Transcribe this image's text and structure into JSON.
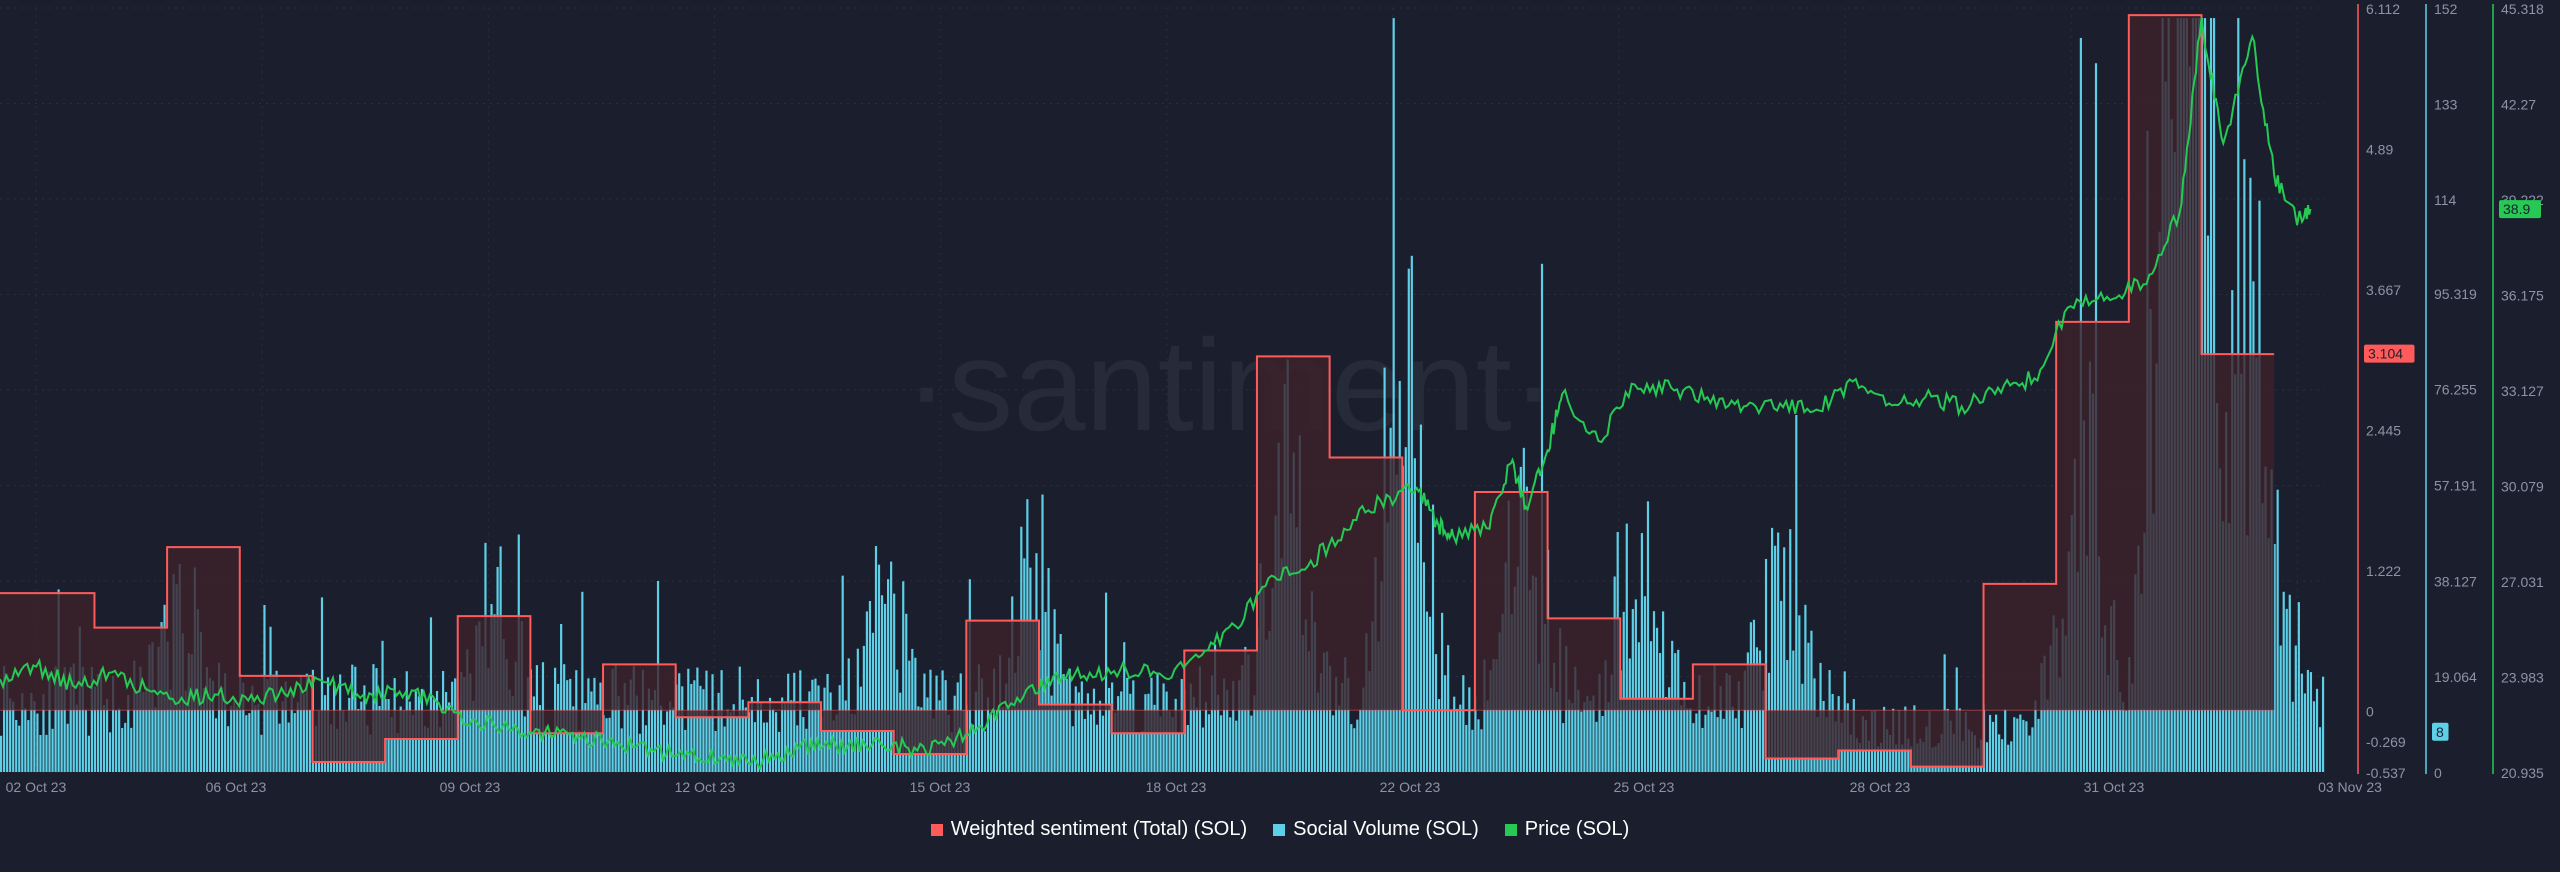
{
  "colors": {
    "background": "#1b1f2d",
    "sentiment": "#ff5b5b",
    "sentiment_fill": "#3d2129",
    "volume": "#5dd0e8",
    "price": "#26c953",
    "grid": "#2a2f3d",
    "axis_text": "#8b93a7"
  },
  "watermark": "·santiment·",
  "chart_data": {
    "type": "bar",
    "x_ticks": [
      "02 Oct 23",
      "06 Oct 23",
      "09 Oct 23",
      "12 Oct 23",
      "15 Oct 23",
      "18 Oct 23",
      "22 Oct 23",
      "25 Oct 23",
      "28 Oct 23",
      "31 Oct 23",
      "03 Nov 23"
    ],
    "x_range_days": [
      0,
      32
    ],
    "series": [
      {
        "name": "Weighted sentiment (Total) (SOL)",
        "type": "step-area",
        "axis": "sentiment",
        "steps": [
          [
            0,
            1.02
          ],
          [
            1.3,
            0.72
          ],
          [
            2.3,
            1.42
          ],
          [
            3.3,
            0.3
          ],
          [
            4.3,
            -0.45
          ],
          [
            5.3,
            -0.25
          ],
          [
            6.3,
            0.82
          ],
          [
            7.3,
            -0.2
          ],
          [
            8.3,
            0.4
          ],
          [
            9.3,
            -0.06
          ],
          [
            10.3,
            0.07
          ],
          [
            11.3,
            -0.18
          ],
          [
            12.3,
            -0.38
          ],
          [
            13.3,
            0.78
          ],
          [
            14.3,
            0.05
          ],
          [
            15.3,
            -0.2
          ],
          [
            16.3,
            0.52
          ],
          [
            17.3,
            3.08
          ],
          [
            18.3,
            2.2
          ],
          [
            19.3,
            0.0
          ],
          [
            20.3,
            1.9
          ],
          [
            21.3,
            0.8
          ],
          [
            22.3,
            0.1
          ],
          [
            23.3,
            0.4
          ],
          [
            24.3,
            -0.42
          ],
          [
            25.3,
            -0.35
          ],
          [
            26.3,
            -0.49
          ],
          [
            27.3,
            1.1
          ],
          [
            28.3,
            3.38
          ],
          [
            29.3,
            6.05
          ],
          [
            30.3,
            3.1
          ],
          [
            31.3,
            3.1
          ]
        ]
      },
      {
        "name": "Social Volume (SOL)",
        "type": "bar",
        "axis": "volume"
      },
      {
        "name": "Price (SOL)",
        "type": "line",
        "axis": "price",
        "points": [
          [
            0,
            23.9
          ],
          [
            0.5,
            24.3
          ],
          [
            1,
            23.7
          ],
          [
            1.5,
            24.1
          ],
          [
            2,
            23.6
          ],
          [
            2.5,
            23.3
          ],
          [
            3,
            23.4
          ],
          [
            3.5,
            23.2
          ],
          [
            4,
            23.6
          ],
          [
            4.5,
            23.8
          ],
          [
            5,
            23.4
          ],
          [
            5.5,
            23.5
          ],
          [
            6,
            23.2
          ],
          [
            6.5,
            22.6
          ],
          [
            7,
            22.3
          ],
          [
            7.5,
            22.2
          ],
          [
            8,
            22.0
          ],
          [
            8.5,
            21.9
          ],
          [
            9,
            21.6
          ],
          [
            9.5,
            21.5
          ],
          [
            10,
            21.3
          ],
          [
            10.5,
            21.3
          ],
          [
            11,
            21.7
          ],
          [
            11.5,
            21.8
          ],
          [
            12,
            21.8
          ],
          [
            12.5,
            21.7
          ],
          [
            13,
            21.8
          ],
          [
            13.5,
            22.4
          ],
          [
            14,
            23.3
          ],
          [
            14.5,
            24.0
          ],
          [
            15,
            24.1
          ],
          [
            15.5,
            24.2
          ],
          [
            16,
            24.0
          ],
          [
            16.5,
            24.6
          ],
          [
            17,
            25.6
          ],
          [
            17.5,
            27.2
          ],
          [
            18,
            27.5
          ],
          [
            18.5,
            28.7
          ],
          [
            19,
            29.6
          ],
          [
            19.5,
            30.0
          ],
          [
            19.8,
            28.8
          ],
          [
            20,
            28.5
          ],
          [
            20.5,
            28.7
          ],
          [
            20.8,
            30.8
          ],
          [
            21,
            29.4
          ],
          [
            21.3,
            31.2
          ],
          [
            21.5,
            33.0
          ],
          [
            22,
            31.5
          ],
          [
            22.5,
            33.3
          ],
          [
            23,
            33.2
          ],
          [
            23.5,
            32.9
          ],
          [
            24,
            32.6
          ],
          [
            24.5,
            32.7
          ],
          [
            25,
            32.5
          ],
          [
            25.5,
            33.4
          ],
          [
            26,
            32.7
          ],
          [
            26.5,
            32.9
          ],
          [
            27,
            32.6
          ],
          [
            27.5,
            33.2
          ],
          [
            28,
            33.5
          ],
          [
            28.5,
            35.8
          ],
          [
            29,
            36.1
          ],
          [
            29.5,
            36.5
          ],
          [
            30,
            38.8
          ],
          [
            30.3,
            45.0
          ],
          [
            30.6,
            41.0
          ],
          [
            31,
            44.4
          ],
          [
            31.3,
            40.0
          ],
          [
            31.6,
            38.6
          ],
          [
            31.8,
            38.9
          ]
        ]
      }
    ],
    "axes": {
      "sentiment": {
        "ticks": [
          "6.112",
          "4.89",
          "3.667",
          "2.445",
          "1.222",
          "0",
          "-0.269",
          "-0.537"
        ],
        "range": [
          -0.537,
          6.112
        ],
        "current_label": "3.104"
      },
      "volume": {
        "ticks": [
          "152",
          "133",
          "114",
          "95.319",
          "76.255",
          "57.191",
          "38.127",
          "19.064",
          "0"
        ],
        "range": [
          0,
          152
        ],
        "current_label": "8"
      },
      "price": {
        "ticks": [
          "45.318",
          "42.27",
          "39.222",
          "36.175",
          "33.127",
          "30.079",
          "27.031",
          "23.983",
          "20.935"
        ],
        "range": [
          20.935,
          45.318
        ],
        "current_label": "38.9"
      }
    },
    "grid": true,
    "legend_position": "bottom-center"
  },
  "legend": {
    "sentiment_label": "Weighted sentiment (Total) (SOL)",
    "volume_label": "Social Volume (SOL)",
    "price_label": "Price (SOL)"
  }
}
